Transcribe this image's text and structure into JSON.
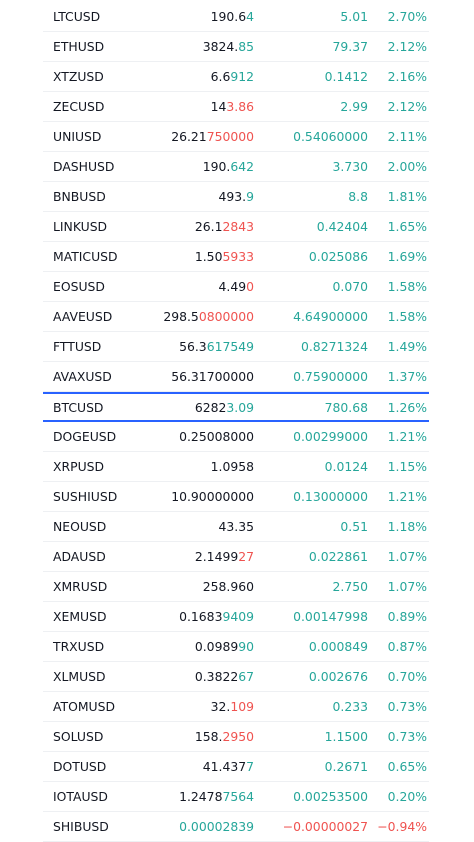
{
  "colors": {
    "up": "#26a69a",
    "down": "#ef5350",
    "selected_border": "#2962ff",
    "text": "#131722"
  },
  "watchlist": {
    "rows": [
      {
        "symbol": "LTCUSD",
        "last_base": "190.6",
        "last_tail": "4",
        "last_dir": "up",
        "change": "5.01",
        "change_pct": "2.70%",
        "dir": "up"
      },
      {
        "symbol": "ETHUSD",
        "last_base": "3824.",
        "last_tail": "85",
        "last_dir": "up",
        "change": "79.37",
        "change_pct": "2.12%",
        "dir": "up"
      },
      {
        "symbol": "XTZUSD",
        "last_base": "6.6",
        "last_tail": "912",
        "last_dir": "up",
        "change": "0.1412",
        "change_pct": "2.16%",
        "dir": "up"
      },
      {
        "symbol": "ZECUSD",
        "last_base": "14",
        "last_tail": "3.86",
        "last_dir": "down",
        "change": "2.99",
        "change_pct": "2.12%",
        "dir": "up"
      },
      {
        "symbol": "UNIUSD",
        "last_base": "26.21",
        "last_tail": "750000",
        "last_dir": "down",
        "change": "0.54060000",
        "change_pct": "2.11%",
        "dir": "up"
      },
      {
        "symbol": "DASHUSD",
        "last_base": "190.",
        "last_tail": "642",
        "last_dir": "up",
        "change": "3.730",
        "change_pct": "2.00%",
        "dir": "up"
      },
      {
        "symbol": "BNBUSD",
        "last_base": "493.",
        "last_tail": "9",
        "last_dir": "up",
        "change": "8.8",
        "change_pct": "1.81%",
        "dir": "up"
      },
      {
        "symbol": "LINKUSD",
        "last_base": "26.1",
        "last_tail": "2843",
        "last_dir": "down",
        "change": "0.42404",
        "change_pct": "1.65%",
        "dir": "up"
      },
      {
        "symbol": "MATICUSD",
        "last_base": "1.50",
        "last_tail": "5933",
        "last_dir": "down",
        "change": "0.025086",
        "change_pct": "1.69%",
        "dir": "up"
      },
      {
        "symbol": "EOSUSD",
        "last_base": "4.49",
        "last_tail": "0",
        "last_dir": "down",
        "change": "0.070",
        "change_pct": "1.58%",
        "dir": "up"
      },
      {
        "symbol": "AAVEUSD",
        "last_base": "298.5",
        "last_tail": "0800000",
        "last_dir": "down",
        "change": "4.64900000",
        "change_pct": "1.58%",
        "dir": "up"
      },
      {
        "symbol": "FTTUSD",
        "last_base": "56.3",
        "last_tail": "617549",
        "last_dir": "up",
        "change": "0.8271324",
        "change_pct": "1.49%",
        "dir": "up"
      },
      {
        "symbol": "AVAXUSD",
        "last_base": "56.31700000",
        "last_tail": "",
        "last_dir": "up",
        "change": "0.75900000",
        "change_pct": "1.37%",
        "dir": "up"
      },
      {
        "symbol": "BTCUSD",
        "last_base": "6282",
        "last_tail": "3.09",
        "last_dir": "up",
        "change": "780.68",
        "change_pct": "1.26%",
        "dir": "up",
        "selected": true
      },
      {
        "symbol": "DOGEUSD",
        "last_base": "0.25008000",
        "last_tail": "",
        "last_dir": "up",
        "change": "0.00299000",
        "change_pct": "1.21%",
        "dir": "up"
      },
      {
        "symbol": "XRPUSD",
        "last_base": "1.0958",
        "last_tail": "",
        "last_dir": "up",
        "change": "0.0124",
        "change_pct": "1.15%",
        "dir": "up"
      },
      {
        "symbol": "SUSHIUSD",
        "last_base": "10.90000000",
        "last_tail": "",
        "last_dir": "up",
        "change": "0.13000000",
        "change_pct": "1.21%",
        "dir": "up"
      },
      {
        "symbol": "NEOUSD",
        "last_base": "43.35",
        "last_tail": "",
        "last_dir": "up",
        "change": "0.51",
        "change_pct": "1.18%",
        "dir": "up"
      },
      {
        "symbol": "ADAUSD",
        "last_base": "2.1499",
        "last_tail": "27",
        "last_dir": "down",
        "change": "0.022861",
        "change_pct": "1.07%",
        "dir": "up"
      },
      {
        "symbol": "XMRUSD",
        "last_base": "258.960",
        "last_tail": "",
        "last_dir": "up",
        "change": "2.750",
        "change_pct": "1.07%",
        "dir": "up"
      },
      {
        "symbol": "XEMUSD",
        "last_base": "0.1683",
        "last_tail": "9409",
        "last_dir": "up",
        "change": "0.00147998",
        "change_pct": "0.89%",
        "dir": "up"
      },
      {
        "symbol": "TRXUSD",
        "last_base": "0.0989",
        "last_tail": "90",
        "last_dir": "up",
        "change": "0.000849",
        "change_pct": "0.87%",
        "dir": "up"
      },
      {
        "symbol": "XLMUSD",
        "last_base": "0.3822",
        "last_tail": "67",
        "last_dir": "up",
        "change": "0.002676",
        "change_pct": "0.70%",
        "dir": "up"
      },
      {
        "symbol": "ATOMUSD",
        "last_base": "32.",
        "last_tail": "109",
        "last_dir": "down",
        "change": "0.233",
        "change_pct": "0.73%",
        "dir": "up"
      },
      {
        "symbol": "SOLUSD",
        "last_base": "158.",
        "last_tail": "2950",
        "last_dir": "down",
        "change": "1.1500",
        "change_pct": "0.73%",
        "dir": "up"
      },
      {
        "symbol": "DOTUSD",
        "last_base": "41.437",
        "last_tail": "7",
        "last_dir": "up",
        "change": "0.2671",
        "change_pct": "0.65%",
        "dir": "up"
      },
      {
        "symbol": "IOTAUSD",
        "last_base": "1.2478",
        "last_tail": "7564",
        "last_dir": "up",
        "change": "0.00253500",
        "change_pct": "0.20%",
        "dir": "up"
      },
      {
        "symbol": "SHIBUSD",
        "last_base": "",
        "last_tail": "0.00002839",
        "last_dir": "up",
        "change": "−0.00000027",
        "change_pct": "−0.94%",
        "dir": "down"
      }
    ]
  }
}
